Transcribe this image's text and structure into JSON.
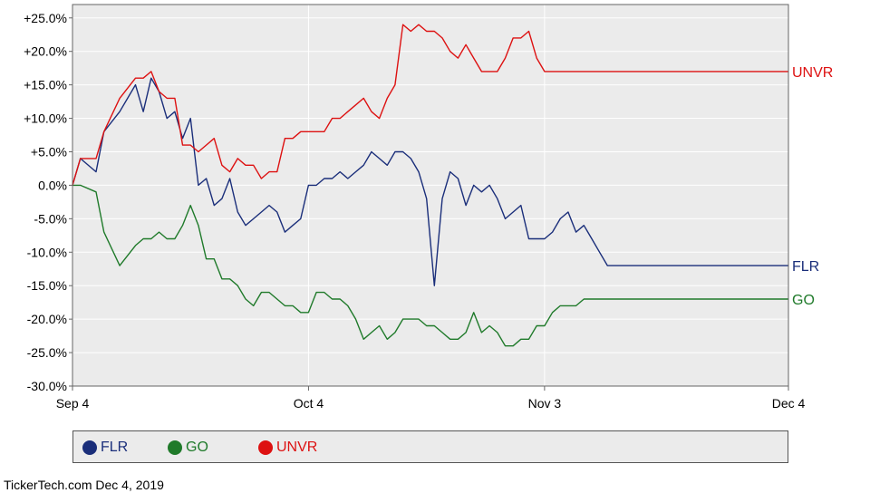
{
  "chart_data": {
    "type": "line",
    "title": "",
    "xlabel": "",
    "ylabel": "",
    "ylim": [
      -30,
      27
    ],
    "yticks": [
      25,
      20,
      15,
      10,
      5,
      0,
      -5,
      -10,
      -15,
      -20,
      -25,
      -30
    ],
    "ytick_labels": [
      "+25.0%",
      "+20.0%",
      "+15.0%",
      "+10.0%",
      "+5.0%",
      "0.0%",
      "-5.0%",
      "-10.0%",
      "-15.0%",
      "-20.0%",
      "-25.0%",
      "-30.0%"
    ],
    "xlim": [
      0,
      91
    ],
    "xticks": [
      0,
      30,
      60,
      91
    ],
    "xtick_labels": [
      "Sep 4",
      "Oct 4",
      "Nov 3",
      "Dec 4"
    ],
    "grid": true,
    "legend_position": "bottom",
    "series": [
      {
        "name": "FLR",
        "color": "#1a2e7a",
        "x": [
          0,
          1,
          3,
          4,
          6,
          8,
          9,
          10,
          11,
          12,
          13,
          14,
          15,
          16,
          17,
          18,
          19,
          20,
          21,
          22,
          23,
          24,
          25,
          26,
          27,
          28,
          29,
          30,
          31,
          32,
          33,
          34,
          35,
          36,
          37,
          38,
          39,
          40,
          41,
          42,
          43,
          44,
          45,
          46,
          47,
          48,
          49,
          50,
          51,
          52,
          53,
          54,
          55,
          56,
          57,
          58,
          59,
          60,
          61,
          62,
          63,
          64,
          65,
          66,
          67,
          68,
          69,
          70,
          71,
          72,
          73,
          74,
          75,
          76,
          77,
          78,
          79,
          80,
          81,
          82,
          83,
          84,
          85,
          86,
          87,
          88,
          89,
          90,
          91
        ],
        "y": [
          0,
          4,
          2,
          8,
          11,
          15,
          11,
          16,
          14,
          10,
          11,
          7,
          10,
          0,
          1,
          -3,
          -2,
          1,
          -4,
          -6,
          -5,
          -4,
          -3,
          -4,
          -7,
          -6,
          -5,
          0,
          0,
          1,
          1,
          2,
          1,
          2,
          3,
          5,
          4,
          3,
          5,
          5,
          4,
          2,
          -2,
          -15,
          -2,
          2,
          1,
          -3,
          0,
          -1,
          0,
          -2,
          -5,
          -4,
          -3,
          -8,
          -8,
          -8,
          -7,
          -5,
          -4,
          -7,
          -6,
          -8,
          -10,
          -12,
          -12,
          -12,
          -12,
          -12,
          -12,
          -12,
          -12,
          -12,
          -12,
          -12,
          -12,
          -12,
          -12,
          -12,
          -12,
          -12,
          -12,
          -12,
          -12,
          -12,
          -12,
          -12,
          -12
        ]
      },
      {
        "name": "GO",
        "color": "#1f7a2a",
        "x": [
          0,
          1,
          3,
          4,
          6,
          8,
          9,
          10,
          11,
          12,
          13,
          14,
          15,
          16,
          17,
          18,
          19,
          20,
          21,
          22,
          23,
          24,
          25,
          26,
          27,
          28,
          29,
          30,
          31,
          32,
          33,
          34,
          35,
          36,
          37,
          38,
          39,
          40,
          41,
          42,
          43,
          44,
          45,
          46,
          47,
          48,
          49,
          50,
          51,
          52,
          53,
          54,
          55,
          56,
          57,
          58,
          59,
          60,
          61,
          62,
          63,
          64,
          65,
          66,
          67,
          68,
          69,
          70,
          71,
          72,
          73,
          74,
          75,
          76,
          77,
          78,
          79,
          80,
          81,
          82,
          83,
          84,
          85,
          86,
          87,
          88,
          89,
          90,
          91
        ],
        "y": [
          0,
          0,
          -1,
          -7,
          -12,
          -9,
          -8,
          -8,
          -7,
          -8,
          -8,
          -6,
          -3,
          -6,
          -11,
          -11,
          -14,
          -14,
          -15,
          -17,
          -18,
          -16,
          -16,
          -17,
          -18,
          -18,
          -19,
          -19,
          -16,
          -16,
          -17,
          -17,
          -18,
          -20,
          -23,
          -22,
          -21,
          -23,
          -22,
          -20,
          -20,
          -20,
          -21,
          -21,
          -22,
          -23,
          -23,
          -22,
          -19,
          -22,
          -21,
          -22,
          -24,
          -24,
          -23,
          -23,
          -21,
          -21,
          -19,
          -18,
          -18,
          -18,
          -17,
          -17,
          -17,
          -17,
          -17,
          -17,
          -17,
          -17,
          -17,
          -17,
          -17,
          -17,
          -17,
          -17,
          -17,
          -17,
          -17,
          -17,
          -17,
          -17,
          -17,
          -17,
          -17,
          -17,
          -17,
          -17,
          -17
        ]
      },
      {
        "name": "UNVR",
        "color": "#dd1111",
        "x": [
          0,
          1,
          3,
          4,
          6,
          8,
          9,
          10,
          11,
          12,
          13,
          14,
          15,
          16,
          17,
          18,
          19,
          20,
          21,
          22,
          23,
          24,
          25,
          26,
          27,
          28,
          29,
          30,
          31,
          32,
          33,
          34,
          35,
          36,
          37,
          38,
          39,
          40,
          41,
          42,
          43,
          44,
          45,
          46,
          47,
          48,
          49,
          50,
          51,
          52,
          53,
          54,
          55,
          56,
          57,
          58,
          59,
          60,
          61,
          62,
          63,
          64,
          65,
          66,
          67,
          68,
          69,
          70,
          71,
          72,
          73,
          74,
          75,
          76,
          77,
          78,
          79,
          80,
          81,
          82,
          83,
          84,
          85,
          86,
          87,
          88,
          89,
          90,
          91
        ],
        "y": [
          0,
          4,
          4,
          8,
          13,
          16,
          16,
          17,
          14,
          13,
          13,
          6,
          6,
          5,
          6,
          7,
          3,
          2,
          4,
          3,
          3,
          1,
          2,
          2,
          7,
          7,
          8,
          8,
          8,
          8,
          10,
          10,
          11,
          12,
          13,
          11,
          10,
          13,
          15,
          24,
          23,
          24,
          23,
          23,
          22,
          20,
          19,
          21,
          19,
          17,
          17,
          17,
          19,
          22,
          22,
          23,
          19,
          17,
          17,
          17,
          17,
          17,
          17,
          17,
          17,
          17,
          17,
          17,
          17,
          17,
          17,
          17,
          17,
          17,
          17,
          17,
          17,
          17,
          17,
          17,
          17,
          17,
          17,
          17,
          17,
          17,
          17,
          17,
          17
        ]
      }
    ]
  },
  "legend": {
    "items": [
      {
        "label": "FLR",
        "color": "#1a2e7a"
      },
      {
        "label": "GO",
        "color": "#1f7a2a"
      },
      {
        "label": "UNVR",
        "color": "#dd1111"
      }
    ]
  },
  "footer": {
    "text": "TickerTech.com  Dec 4, 2019"
  }
}
